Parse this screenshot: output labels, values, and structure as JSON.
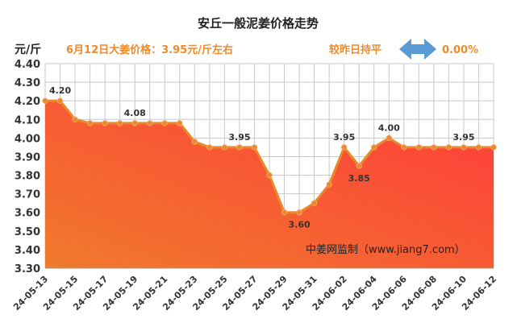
{
  "chart_data": {
    "type": "area",
    "title": "安丘一般泥姜价格走势",
    "ylabel": "元/斤",
    "subtitle": "6月12日大姜价格：3.95元/斤左右",
    "change_label": "较昨日持平",
    "change_value": "0.00%",
    "source": "中姜网监制（www.jiang7.com）",
    "ylim": [
      3.3,
      4.4
    ],
    "yticks": [
      "3.30",
      "3.40",
      "3.50",
      "3.60",
      "3.70",
      "3.80",
      "3.90",
      "4.00",
      "4.10",
      "4.20",
      "4.30",
      "4.40"
    ],
    "x": [
      "24-05-13",
      "24-05-14",
      "24-05-15",
      "24-05-16",
      "24-05-17",
      "24-05-18",
      "24-05-19",
      "24-05-20",
      "24-05-21",
      "24-05-22",
      "24-05-23",
      "24-05-24",
      "24-05-25",
      "24-05-26",
      "24-05-27",
      "24-05-28",
      "24-05-29",
      "24-05-30",
      "24-05-31",
      "24-06-01",
      "24-06-02",
      "24-06-03",
      "24-06-04",
      "24-06-05",
      "24-06-06",
      "24-06-07",
      "24-06-08",
      "24-06-09",
      "24-06-10",
      "24-06-11",
      "24-06-12"
    ],
    "xtick_labels": [
      "24-05-13",
      "24-05-15",
      "24-05-17",
      "24-05-19",
      "24-05-21",
      "24-05-23",
      "24-05-25",
      "24-05-27",
      "24-05-29",
      "24-05-31",
      "24-06-02",
      "24-06-04",
      "24-06-06",
      "24-06-08",
      "24-06-10",
      "24-06-12"
    ],
    "values": [
      4.2,
      4.2,
      4.1,
      4.08,
      4.08,
      4.08,
      4.08,
      4.08,
      4.08,
      4.08,
      3.98,
      3.95,
      3.95,
      3.95,
      3.95,
      3.8,
      3.6,
      3.6,
      3.65,
      3.75,
      3.95,
      3.85,
      3.95,
      4.0,
      3.95,
      3.95,
      3.95,
      3.95,
      3.95,
      3.95,
      3.95
    ],
    "data_labels": [
      {
        "index": 1,
        "text": "4.20",
        "pos": "above"
      },
      {
        "index": 6,
        "text": "4.08",
        "pos": "above"
      },
      {
        "index": 13,
        "text": "3.95",
        "pos": "above"
      },
      {
        "index": 17,
        "text": "3.60",
        "pos": "below"
      },
      {
        "index": 20,
        "text": "3.95",
        "pos": "above"
      },
      {
        "index": 21,
        "text": "3.85",
        "pos": "below"
      },
      {
        "index": 23,
        "text": "4.00",
        "pos": "above"
      },
      {
        "index": 28,
        "text": "3.95",
        "pos": "above"
      }
    ],
    "colors": {
      "line": "#e8892b",
      "fill_top": "#ff3b3b",
      "fill_bottom": "#f07a2c",
      "arrow": "#5b9bd5"
    }
  }
}
